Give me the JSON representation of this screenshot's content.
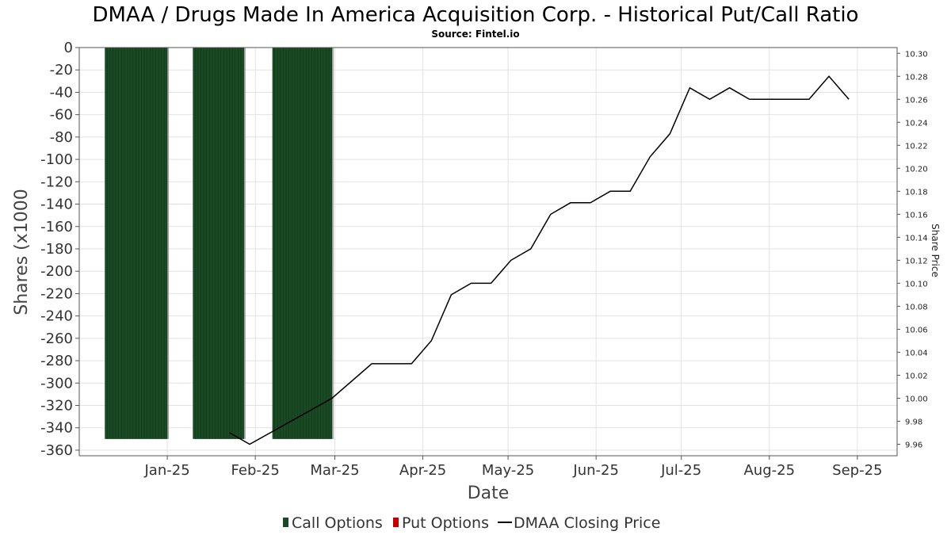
{
  "chart": {
    "title": "DMAA / Drugs Made In America Acquisition Corp. - Historical Put/Call Ratio",
    "subtitle": "Source: Fintel.io",
    "xlabel": "Date",
    "ylabel_left": "Shares (x1000",
    "ylabel_right": "Share Price",
    "legend": [
      {
        "label": "Call Options",
        "color": "#1a4a24"
      },
      {
        "label": "Put Options",
        "color": "#c00000"
      },
      {
        "label": "DMAA Closing Price",
        "color": "#000000"
      }
    ]
  },
  "chart_data": {
    "type": "bar",
    "x_axis": {
      "type": "date",
      "range": [
        "2024-12-01",
        "2025-09-15"
      ],
      "ticks": [
        "Jan-25",
        "Feb-25",
        "Mar-25",
        "Apr-25",
        "May-25",
        "Jun-25",
        "Jul-25",
        "Aug-25",
        "Sep-25"
      ]
    },
    "y_axis_left": {
      "range": [
        -365,
        0
      ],
      "ticks": [
        0,
        -20,
        -40,
        -60,
        -80,
        -100,
        -120,
        -140,
        -160,
        -180,
        -200,
        -220,
        -240,
        -260,
        -280,
        -300,
        -320,
        -340,
        -360
      ]
    },
    "y_axis_right": {
      "range": [
        9.95,
        10.305
      ],
      "ticks": [
        "10.30",
        "10.28",
        "10.26",
        "10.24",
        "10.22",
        "10.20",
        "10.18",
        "10.16",
        "10.14",
        "10.12",
        "10.10",
        "10.08",
        "10.06",
        "10.04",
        "10.02",
        "10.00",
        "9.98",
        "9.96"
      ]
    },
    "grid": true,
    "legend_position": "bottom",
    "series": [
      {
        "name": "Call Options",
        "kind": "bar",
        "color": "#1a4a24",
        "bars": [
          {
            "start": "2024-12-10",
            "end": "2025-01-01",
            "value": -350
          },
          {
            "start": "2025-01-10",
            "end": "2025-01-28",
            "value": -350
          },
          {
            "start": "2025-02-07",
            "end": "2025-02-28",
            "value": -350
          }
        ]
      },
      {
        "name": "Put Options",
        "kind": "bar",
        "color": "#c00000",
        "bars": []
      },
      {
        "name": "DMAA Closing Price",
        "kind": "line",
        "color": "#000000",
        "points": [
          {
            "x": "2025-01-23",
            "y": 9.97
          },
          {
            "x": "2025-01-30",
            "y": 9.96
          },
          {
            "x": "2025-02-28",
            "y": 10.0
          },
          {
            "x": "2025-03-14",
            "y": 10.03
          },
          {
            "x": "2025-03-21",
            "y": 10.03
          },
          {
            "x": "2025-03-28",
            "y": 10.03
          },
          {
            "x": "2025-04-04",
            "y": 10.05
          },
          {
            "x": "2025-04-11",
            "y": 10.09
          },
          {
            "x": "2025-04-18",
            "y": 10.1
          },
          {
            "x": "2025-04-25",
            "y": 10.1
          },
          {
            "x": "2025-05-02",
            "y": 10.12
          },
          {
            "x": "2025-05-09",
            "y": 10.13
          },
          {
            "x": "2025-05-16",
            "y": 10.16
          },
          {
            "x": "2025-05-23",
            "y": 10.17
          },
          {
            "x": "2025-05-30",
            "y": 10.17
          },
          {
            "x": "2025-06-06",
            "y": 10.18
          },
          {
            "x": "2025-06-13",
            "y": 10.18
          },
          {
            "x": "2025-06-20",
            "y": 10.21
          },
          {
            "x": "2025-06-27",
            "y": 10.23
          },
          {
            "x": "2025-07-04",
            "y": 10.27
          },
          {
            "x": "2025-07-11",
            "y": 10.26
          },
          {
            "x": "2025-07-18",
            "y": 10.27
          },
          {
            "x": "2025-07-25",
            "y": 10.26
          },
          {
            "x": "2025-08-01",
            "y": 10.26
          },
          {
            "x": "2025-08-08",
            "y": 10.26
          },
          {
            "x": "2025-08-15",
            "y": 10.26
          },
          {
            "x": "2025-08-22",
            "y": 10.28
          },
          {
            "x": "2025-08-29",
            "y": 10.26
          }
        ]
      }
    ]
  }
}
